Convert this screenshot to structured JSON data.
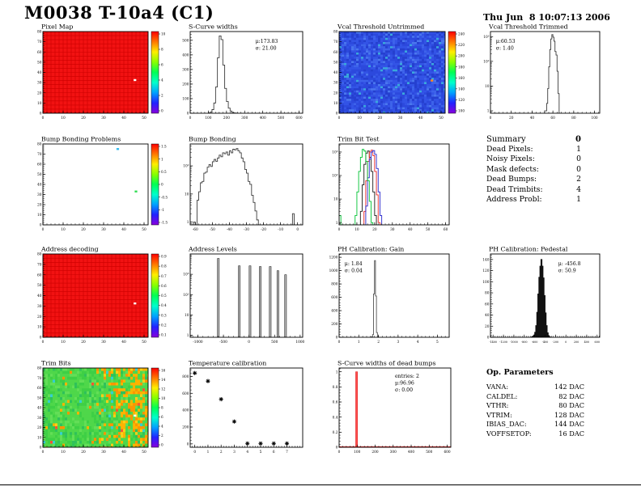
{
  "header": {
    "title": "M0038 T-10a4 (C1)",
    "date": "Thu Jun  8 10:07:13 2006"
  },
  "summary": {
    "title": "Summary",
    "grade": "0",
    "rows": [
      {
        "label": "Dead Pixels:",
        "value": "1"
      },
      {
        "label": "Noisy Pixels:",
        "value": "0"
      },
      {
        "label": "Mask defects:",
        "value": "0"
      },
      {
        "label": "Dead Bumps:",
        "value": "2"
      },
      {
        "label": "Dead Trimbits:",
        "value": "4"
      },
      {
        "label": "Address Probl:",
        "value": "1"
      }
    ]
  },
  "op_parameters": {
    "title": "Op. Parameters",
    "rows": [
      {
        "label": "VANA:",
        "value": "142 DAC"
      },
      {
        "label": "CALDEL:",
        "value": "82 DAC"
      },
      {
        "label": "VTHR:",
        "value": "80 DAC"
      },
      {
        "label": "VTRIM:",
        "value": "128 DAC"
      },
      {
        "label": "IBIAS_DAC:",
        "value": "144 DAC"
      },
      {
        "label": "VOFFSETOP:",
        "value": "16 DAC"
      }
    ]
  },
  "chart_data": [
    {
      "id": "pixel_map",
      "type": "heatmap",
      "title": "Pixel Map",
      "xlim": [
        0,
        52
      ],
      "ylim": [
        0,
        80
      ],
      "xticks": [
        0,
        10,
        20,
        30,
        40,
        50
      ],
      "yticks": [
        0,
        10,
        20,
        30,
        40,
        50,
        60,
        70,
        80
      ],
      "style": {
        "base": "#f21212",
        "grid": "#cc0000",
        "noise": "none"
      },
      "dots": [
        {
          "x": 45.5,
          "y": 32.5,
          "color": "#ffffff"
        }
      ],
      "colorbar": {
        "labels": [
          "10",
          "8",
          "6",
          "4",
          "2",
          "0"
        ]
      }
    },
    {
      "id": "scurve_widths",
      "type": "hist",
      "title": "S-Curve widths",
      "xlim": [
        0,
        620
      ],
      "ylim": [
        0,
        560
      ],
      "xticks": [
        0,
        100,
        200,
        300,
        400,
        500,
        600
      ],
      "yticks": [
        0,
        100,
        200,
        300,
        400,
        500
      ],
      "stats": {
        "fx": 0.58,
        "fy": 0.08,
        "lines": [
          "μ:173.83",
          "σ: 21.00"
        ]
      },
      "series": [
        {
          "name": "scurve-widths",
          "color": "#3c3c3c",
          "edges": [
            100,
            110,
            120,
            130,
            140,
            150,
            160,
            170,
            180,
            190,
            200,
            210,
            220,
            230,
            240,
            250,
            260,
            270
          ],
          "counts": [
            2,
            8,
            25,
            70,
            180,
            380,
            530,
            505,
            330,
            170,
            80,
            35,
            15,
            6,
            2,
            1,
            0
          ]
        }
      ]
    },
    {
      "id": "vcal_untrimmed",
      "type": "heatmap",
      "title": "Vcal Threshold Untrimmed",
      "xlim": [
        0,
        52
      ],
      "ylim": [
        0,
        80
      ],
      "xticks": [
        0,
        10,
        20,
        30,
        40,
        50
      ],
      "yticks": [
        0,
        10,
        20,
        30,
        40,
        50,
        60,
        70,
        80
      ],
      "style": {
        "base": "#2e4ce2",
        "noise": "blue"
      },
      "dots": [
        {
          "x": 45.5,
          "y": 32,
          "color": "#ff8820"
        }
      ],
      "colorbar": {
        "labels": [
          "240",
          "220",
          "200",
          "180",
          "160",
          "140",
          "120",
          "100"
        ]
      }
    },
    {
      "id": "vcal_trimmed",
      "type": "hist",
      "log": true,
      "title": "Vcal Threshold Trimmed",
      "xlim": [
        0,
        105
      ],
      "ylim": [
        0.8,
        1600
      ],
      "xticks": [
        0,
        20,
        40,
        60,
        80,
        100
      ],
      "yticks": [
        1,
        10,
        100,
        1000
      ],
      "ytick_labels": [
        "1",
        "10",
        "10²",
        "10³"
      ],
      "stats": {
        "fx": 0.05,
        "fy": 0.08,
        "lines": [
          "μ:60.53",
          "σ: 1.40"
        ]
      },
      "series": [
        {
          "name": "vcal-trimmed",
          "color": "#3c3c3c",
          "edges": [
            52,
            54,
            55,
            56,
            57,
            58,
            59,
            60,
            61,
            62,
            63,
            64,
            65,
            66
          ],
          "counts": [
            1,
            2,
            8,
            60,
            300,
            800,
            1200,
            950,
            650,
            250,
            180,
            40,
            5
          ]
        }
      ]
    },
    {
      "id": "bump_problems",
      "type": "heatmap",
      "title": "Bump Bonding Problems",
      "xlim": [
        0,
        52
      ],
      "ylim": [
        0,
        80
      ],
      "xticks": [
        0,
        10,
        20,
        30,
        40,
        50
      ],
      "yticks": [
        0,
        10,
        20,
        30,
        40,
        50,
        60,
        70,
        80
      ],
      "style": {
        "base": "#ffffff",
        "noise": "none"
      },
      "dots": [
        {
          "x": 37,
          "y": 75,
          "color": "#33bbee"
        },
        {
          "x": 46,
          "y": 33,
          "color": "#33dd55"
        }
      ],
      "colorbar": {
        "labels": [
          "1.5",
          "1",
          "0.5",
          "0",
          "-0.5",
          "-1",
          "-1.5"
        ]
      }
    },
    {
      "id": "bump_bonding",
      "type": "hist",
      "log": true,
      "title": "Bump Bonding",
      "xlim": [
        -63,
        3
      ],
      "ylim": [
        0.8,
        600
      ],
      "xticks": [
        -60,
        -50,
        -40,
        -30,
        -20,
        -10,
        0
      ],
      "yticks": [
        1,
        10,
        100
      ],
      "ytick_labels": [
        "1",
        "10",
        "10²"
      ],
      "series": [
        {
          "name": "bump-main",
          "color": "#3c3c3c",
          "edges": [
            -61,
            -60,
            -59,
            -58,
            -57,
            -56,
            -55,
            -54,
            -53,
            -52,
            -51,
            -50,
            -49,
            -48,
            -47,
            -46,
            -45,
            -44,
            -43,
            -42,
            -41,
            -40,
            -39,
            -38,
            -37,
            -36,
            -35,
            -34,
            -33,
            -32,
            -31,
            -30,
            -29,
            -28,
            -27,
            -26,
            -25,
            -24,
            -23,
            -22
          ],
          "counts": [
            1,
            0,
            6,
            12,
            25,
            28,
            55,
            60,
            90,
            110,
            95,
            140,
            170,
            145,
            190,
            240,
            210,
            290,
            270,
            310,
            240,
            340,
            290,
            390,
            370,
            410,
            340,
            290,
            190,
            140,
            75,
            55,
            28,
            22,
            9,
            5,
            2.5,
            1.2,
            0
          ]
        },
        {
          "name": "bump-outlier",
          "color": "#3c3c3c",
          "edges": [
            -4,
            -3,
            -2
          ],
          "counts": [
            0,
            2
          ]
        }
      ]
    },
    {
      "id": "trim_bit_test",
      "type": "hist",
      "log": true,
      "title": "Trim Bit Test",
      "xlim": [
        0,
        62
      ],
      "ylim": [
        0.8,
        2200
      ],
      "xticks": [
        0,
        10,
        20,
        30,
        40,
        50,
        60
      ],
      "yticks": [
        1,
        10,
        100,
        1000
      ],
      "ytick_labels": [
        "1",
        "10",
        "10²",
        "10³"
      ],
      "series": [
        {
          "name": "trim-bit-black",
          "color": "#1a1a1a",
          "edges": [
            12,
            13,
            14,
            15,
            16,
            17,
            18,
            19,
            20,
            21,
            22
          ],
          "counts": [
            3,
            40,
            300,
            900,
            1100,
            600,
            150,
            20,
            2,
            0
          ]
        },
        {
          "name": "trim-bit-red",
          "color": "#e82222",
          "edges": [
            14,
            15,
            16,
            17,
            18,
            19,
            20,
            21,
            22,
            23,
            24
          ],
          "counts": [
            3,
            60,
            400,
            1000,
            1200,
            700,
            150,
            15,
            1,
            0
          ]
        },
        {
          "name": "trim-bit-blue",
          "color": "#2525cc",
          "edges": [
            15,
            16,
            17,
            18,
            19,
            20,
            21,
            22,
            23,
            24,
            25
          ],
          "counts": [
            5,
            80,
            500,
            1000,
            1150,
            800,
            200,
            20,
            2,
            0
          ]
        },
        {
          "name": "trim-bit-green",
          "color": "#00c233",
          "edges": [
            0,
            1,
            9,
            10,
            11,
            12,
            13,
            14,
            15,
            16,
            17,
            18,
            19,
            20
          ],
          "counts": [
            2,
            0,
            2,
            20,
            150,
            600,
            1300,
            1100,
            400,
            60,
            8,
            1,
            0
          ]
        }
      ]
    },
    {
      "id": "address_decoding",
      "type": "heatmap",
      "title": "Address decoding",
      "xlim": [
        0,
        52
      ],
      "ylim": [
        0,
        80
      ],
      "xticks": [
        0,
        10,
        20,
        30,
        40,
        50
      ],
      "yticks": [
        0,
        10,
        20,
        30,
        40,
        50,
        60,
        70,
        80
      ],
      "style": {
        "base": "#f21212",
        "grid": "#cc0000",
        "noise": "none"
      },
      "dots": [
        {
          "x": 45.5,
          "y": 32.5,
          "color": "#ffffff"
        }
      ],
      "colorbar": {
        "labels": [
          "0.9",
          "0.8",
          "0.7",
          "0.6",
          "0.5",
          "0.4",
          "0.3",
          "0.2",
          "0.1"
        ]
      }
    },
    {
      "id": "address_levels",
      "type": "spikes",
      "log": true,
      "title": "Address Levels",
      "xlim": [
        -1150,
        1050
      ],
      "ylim": [
        0.8,
        10000
      ],
      "xticks": [
        -1000,
        -500,
        0,
        500,
        1000
      ],
      "yticks": [
        1,
        10,
        100,
        1000
      ],
      "ytick_labels": [
        "1",
        "10",
        "10²",
        "10³"
      ],
      "spikes": {
        "x": [
          -600,
          -190,
          20,
          220,
          415,
          565,
          715
        ],
        "h": [
          6000,
          2600,
          2600,
          2400,
          2400,
          1500,
          950
        ],
        "width": 18,
        "fill": "#b8b8b8",
        "stroke": "#222222"
      }
    },
    {
      "id": "ph_gain",
      "type": "hist",
      "title": "PH Calibration: Gain",
      "xlim": [
        0,
        5.6
      ],
      "ylim": [
        0,
        1250
      ],
      "xticks": [
        0,
        1,
        2,
        3,
        4,
        5
      ],
      "yticks": [
        0,
        200,
        400,
        600,
        800,
        1000,
        1200
      ],
      "stats": {
        "fx": 0.05,
        "fy": 0.08,
        "lines": [
          "μ: 1.84",
          "σ: 0.04"
        ]
      },
      "series": [
        {
          "name": "gain",
          "color": "#555555",
          "edges": [
            1.6,
            1.65,
            1.7,
            1.75,
            1.8,
            1.85,
            1.9,
            1.95,
            2.0,
            2.05
          ],
          "counts": [
            2,
            8,
            40,
            650,
            1150,
            620,
            70,
            12,
            0
          ]
        }
      ]
    },
    {
      "id": "ph_pedestal",
      "type": "hist",
      "title": "PH Calibration: Pedestal",
      "xlim": [
        -1450,
        650
      ],
      "ylim": [
        0,
        150
      ],
      "xticks": [
        -1400,
        -1200,
        -1000,
        -800,
        -600,
        -400,
        -200,
        0,
        200,
        400,
        600
      ],
      "yticks": [
        0,
        20,
        40,
        60,
        80,
        100,
        120,
        140
      ],
      "stats": {
        "fx": 0.62,
        "fy": 0.08,
        "lines": [
          "μ: -456.8",
          "σ: 50.9"
        ]
      },
      "series": [
        {
          "name": "pedestal",
          "color": "#111111",
          "fill": "#111111",
          "edges": [
            -660,
            -640,
            -620,
            -600,
            -580,
            -560,
            -540,
            -520,
            -500,
            -480,
            -460,
            -440,
            -420,
            -400,
            -380,
            -360,
            -340,
            -320,
            -300,
            -280,
            -260
          ],
          "counts": [
            1,
            2,
            4,
            9,
            21,
            45,
            78,
            108,
            128,
            140,
            128,
            107,
            75,
            44,
            21,
            8,
            3,
            1,
            0,
            0
          ]
        }
      ]
    },
    {
      "id": "trim_bits",
      "type": "heatmap",
      "title": "Trim Bits",
      "xlim": [
        0,
        52
      ],
      "ylim": [
        0,
        80
      ],
      "xticks": [
        0,
        10,
        20,
        30,
        40,
        50
      ],
      "yticks": [
        0,
        10,
        20,
        30,
        40,
        50,
        60,
        70,
        80
      ],
      "style": {
        "base": "#4fd74a",
        "noise": "trim"
      },
      "dots": [
        {
          "x": 45.5,
          "y": 32,
          "color": "#ffffff"
        }
      ],
      "colorbar": {
        "labels": [
          "16",
          "14",
          "12",
          "10",
          "8",
          "6",
          "4",
          "2",
          "0"
        ]
      }
    },
    {
      "id": "temp_calibration",
      "type": "scatter",
      "title": "Temperature calibration",
      "xlim": [
        -0.35,
        8.2
      ],
      "ylim": [
        -40,
        900
      ],
      "xticks": [
        0,
        1,
        2,
        3,
        4,
        5,
        6,
        7
      ],
      "yticks": [
        0,
        200,
        400,
        600,
        800
      ],
      "points": {
        "x": [
          0,
          1,
          2,
          3,
          4,
          5,
          6,
          7
        ],
        "y": [
          840,
          745,
          530,
          265,
          5,
          5,
          5,
          5
        ]
      }
    },
    {
      "id": "scurve_dead",
      "type": "spikes",
      "title": "S-Curve widths of dead bumps",
      "xlim": [
        0,
        620
      ],
      "ylim": [
        0,
        1.05
      ],
      "xticks": [
        0,
        100,
        200,
        300,
        400,
        500,
        600
      ],
      "yticks": [
        0,
        0.2,
        0.4,
        0.6,
        0.8,
        1
      ],
      "stats": {
        "fx": 0.5,
        "fy": 0.06,
        "lines": [
          "entries:  2",
          "μ:96.96",
          "σ: 0.00"
        ]
      },
      "spikes": {
        "x": [
          97
        ],
        "h": [
          1.0
        ],
        "width": 8,
        "fill": "#ff5050",
        "stroke": "#e02020"
      },
      "baseline_color": "#e02020"
    }
  ]
}
